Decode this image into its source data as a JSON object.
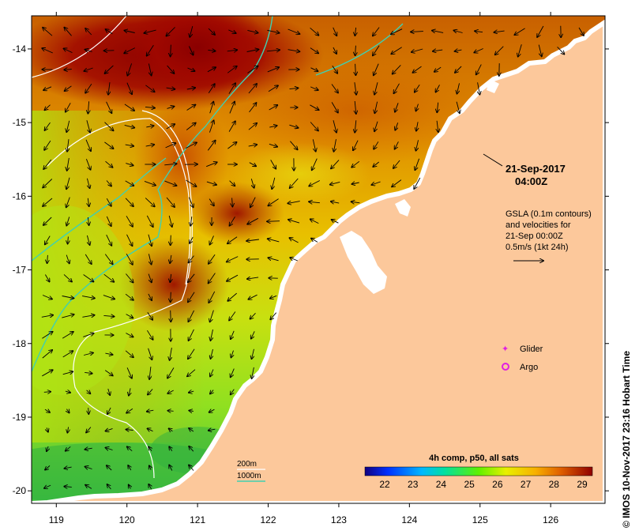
{
  "map": {
    "bounds": {
      "lon_min": 118.65,
      "lon_max": 126.77,
      "lat_min": -20.17,
      "lat_max": -13.55
    },
    "x_ticks": [
      119,
      120,
      121,
      122,
      123,
      124,
      125,
      126
    ],
    "x_tick_labels": [
      "119",
      "120",
      "121",
      "122",
      "123",
      "124",
      "125",
      "126"
    ],
    "y_ticks": [
      -14,
      -15,
      -16,
      -17,
      -18,
      -19,
      -20
    ],
    "y_tick_labels": [
      "-14",
      "-15",
      "-16",
      "-17",
      "-18",
      "-19",
      "-20"
    ],
    "colors": {
      "land": "#fcc89b",
      "contour_200m": "#ffffff",
      "contour_1000m": "#40d0b0",
      "marker": "#e020e0"
    },
    "scene_time": {
      "date": "21-Sep-2017",
      "time": "04:00Z"
    },
    "gsla_note": {
      "lines": [
        "GSLA (0.1m contours)",
        "and velocities for",
        "21-Sep 00:00Z",
        "0.5m/s (1kt 24h)"
      ]
    },
    "legend": {
      "glider": "Glider",
      "argo": "Argo"
    },
    "depth_legend": {
      "shallow": "200m",
      "deep": "1000m"
    },
    "colorbar": {
      "title": "4h comp, p50, all sats",
      "ticks": [
        "22",
        "23",
        "24",
        "25",
        "26",
        "27",
        "28",
        "29"
      ]
    },
    "credit": "© IMOS 10-Nov-2017 23:16 Hobart Time"
  }
}
